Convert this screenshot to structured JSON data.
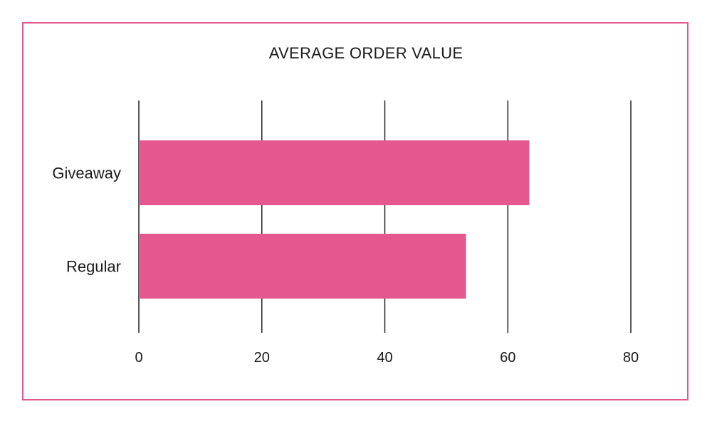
{
  "chart_data": {
    "type": "bar",
    "orientation": "horizontal",
    "title": "AVERAGE ORDER VALUE",
    "categories": [
      "Giveaway",
      "Regular"
    ],
    "values": [
      63.5,
      53.2
    ],
    "xlim": [
      0,
      80
    ],
    "xticks": [
      "0",
      "20",
      "40",
      "60",
      "80"
    ],
    "xlabel": "",
    "ylabel": "",
    "grid": "vertical",
    "bar_color": "#e5578f",
    "frame_color": "#e3578e"
  }
}
